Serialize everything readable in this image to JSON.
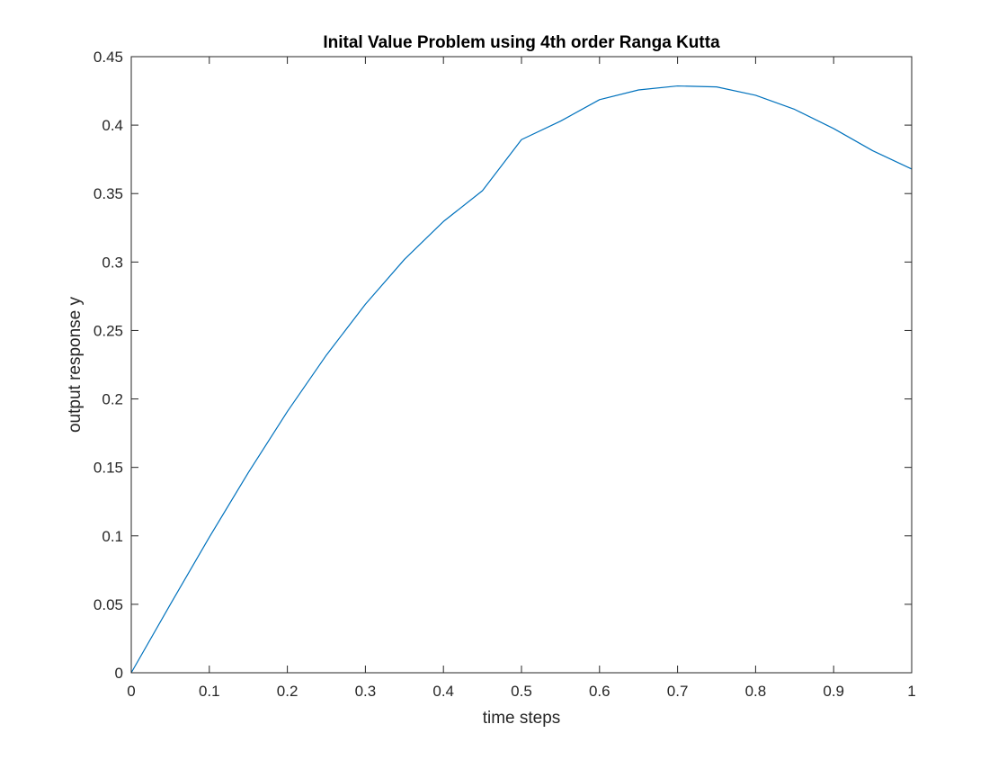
{
  "chart_data": {
    "type": "line",
    "title": "Inital Value Problem using 4th order Ranga Kutta",
    "xlabel": "time steps",
    "ylabel": "output response y",
    "xlim": [
      0,
      1
    ],
    "ylim": [
      0,
      0.45
    ],
    "x_ticks": [
      0,
      0.1,
      0.2,
      0.3,
      0.4,
      0.5,
      0.6,
      0.7,
      0.8,
      0.9,
      1
    ],
    "x_tick_labels": [
      "0",
      "0.1",
      "0.2",
      "0.3",
      "0.4",
      "0.5",
      "0.6",
      "0.7",
      "0.8",
      "0.9",
      "1"
    ],
    "y_ticks": [
      0,
      0.05,
      0.1,
      0.15,
      0.2,
      0.25,
      0.3,
      0.35,
      0.4,
      0.45
    ],
    "y_tick_labels": [
      "0",
      "0.05",
      "0.1",
      "0.15",
      "0.2",
      "0.25",
      "0.3",
      "0.35",
      "0.4",
      "0.45"
    ],
    "grid": false,
    "line_color": "#0072BD",
    "series": [
      {
        "x": [
          0,
          0.05,
          0.1,
          0.15,
          0.2,
          0.25,
          0.3,
          0.35,
          0.4,
          0.45,
          0.5,
          0.55,
          0.6,
          0.65,
          0.7,
          0.75,
          0.8,
          0.85,
          0.9,
          0.95,
          1
        ],
        "values": [
          0,
          0.0499,
          0.099,
          0.1462,
          0.1908,
          0.232,
          0.2692,
          0.3019,
          0.3296,
          0.3521,
          0.3894,
          0.4029,
          0.4186,
          0.4257,
          0.4286,
          0.4279,
          0.4218,
          0.4115,
          0.3975,
          0.3813,
          0.3679
        ]
      }
    ]
  }
}
